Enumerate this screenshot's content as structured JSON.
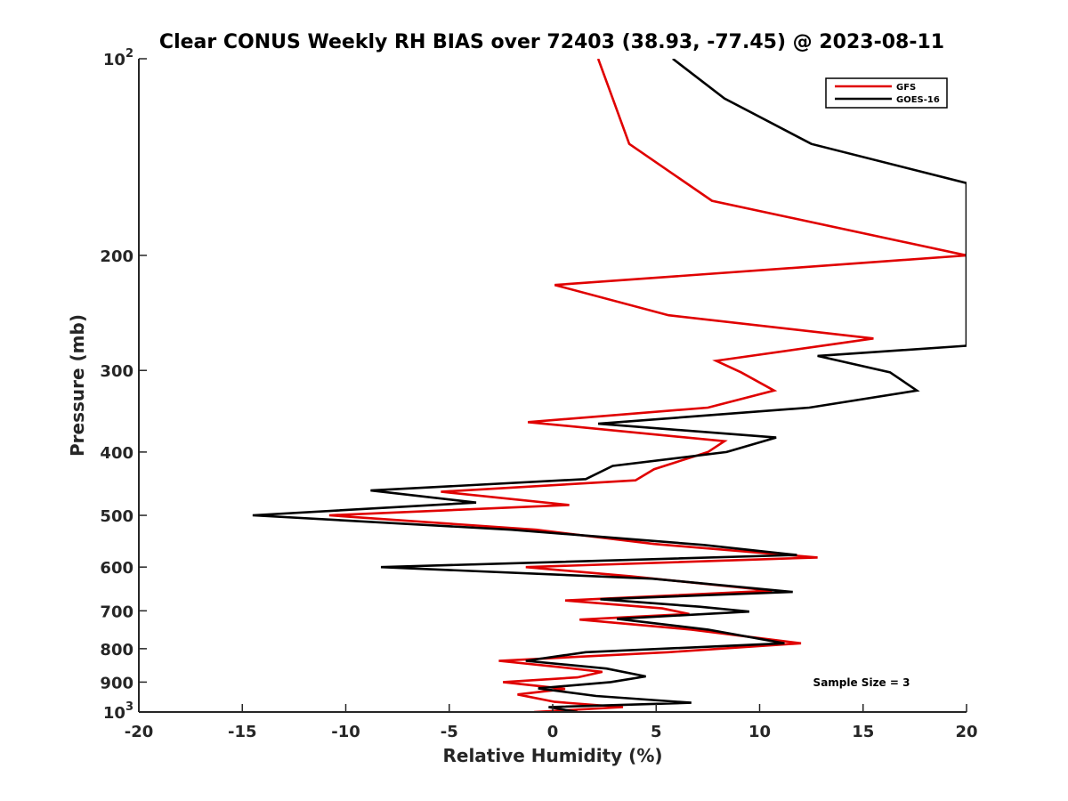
{
  "chart_data": {
    "type": "line",
    "title": "Clear CONUS Weekly RH BIAS over 72403 (38.93, -77.45) @ 2023-08-11",
    "xlabel": "Relative Humidity (%)",
    "ylabel": "Pressure (mb)",
    "xlim": [
      -20,
      20
    ],
    "ylim": [
      100,
      1000
    ],
    "y_scale": "log",
    "y_reversed": true,
    "grid": false,
    "legend_position": "top-right",
    "x_ticks": [
      "-20",
      "-15",
      "-10",
      "-5",
      "0",
      "5",
      "10",
      "15",
      "20"
    ],
    "x_tick_values": [
      -20,
      -15,
      -10,
      -5,
      0,
      5,
      10,
      15,
      20
    ],
    "y_ticks": [
      {
        "value": 100,
        "base": "10",
        "exp": "2"
      },
      {
        "value": 200,
        "label": "200"
      },
      {
        "value": 300,
        "label": "300"
      },
      {
        "value": 400,
        "label": "400"
      },
      {
        "value": 500,
        "label": "500"
      },
      {
        "value": 600,
        "label": "600"
      },
      {
        "value": 700,
        "label": "700"
      },
      {
        "value": 800,
        "label": "800"
      },
      {
        "value": 900,
        "label": "900"
      },
      {
        "value": 1000,
        "base": "10",
        "exp": "3"
      }
    ],
    "annotation": "Sample Size = 3",
    "series": [
      {
        "name": "GFS",
        "color": "#e00000",
        "points": [
          [
            2.2,
            100
          ],
          [
            2.9,
            115
          ],
          [
            3.7,
            135
          ],
          [
            7.7,
            165
          ],
          [
            20,
            200
          ],
          [
            0.1,
            222
          ],
          [
            5.6,
            247
          ],
          [
            15.5,
            268
          ],
          [
            7.9,
            290
          ],
          [
            9.1,
            302
          ],
          [
            10.7,
            322
          ],
          [
            7.5,
            342
          ],
          [
            -1.2,
            360
          ],
          [
            8.3,
            385
          ],
          [
            7.5,
            400
          ],
          [
            4.9,
            425
          ],
          [
            4.0,
            442
          ],
          [
            -5.4,
            460
          ],
          [
            0.8,
            482
          ],
          [
            -10.8,
            500
          ],
          [
            -0.8,
            526
          ],
          [
            4.9,
            553
          ],
          [
            12.8,
            580
          ],
          [
            -1.3,
            600
          ],
          [
            3.8,
            620
          ],
          [
            10.6,
            652
          ],
          [
            0.6,
            675
          ],
          [
            5.3,
            694
          ],
          [
            6.6,
            708
          ],
          [
            1.3,
            722
          ],
          [
            6.7,
            748
          ],
          [
            12.0,
            785
          ],
          [
            5.6,
            810
          ],
          [
            -2.6,
            835
          ],
          [
            0.1,
            852
          ],
          [
            2.4,
            868
          ],
          [
            1.2,
            885
          ],
          [
            -2.4,
            900
          ],
          [
            0.6,
            922
          ],
          [
            -1.7,
            940
          ],
          [
            0.1,
            965
          ],
          [
            3.4,
            983
          ],
          [
            -0.9,
            1000
          ]
        ]
      },
      {
        "name": "GOES-16",
        "color": "#000000",
        "points": [
          [
            5.8,
            100
          ],
          [
            8.3,
            115
          ],
          [
            12.5,
            135
          ],
          [
            20,
            155
          ],
          [
            20,
            275
          ],
          [
            12.8,
            285
          ],
          [
            16.3,
            302
          ],
          [
            17.6,
            322
          ],
          [
            12.4,
            342
          ],
          [
            2.2,
            362
          ],
          [
            10.8,
            380
          ],
          [
            8.4,
            400
          ],
          [
            2.9,
            420
          ],
          [
            1.6,
            440
          ],
          [
            -8.8,
            458
          ],
          [
            -3.7,
            478
          ],
          [
            -14.5,
            500
          ],
          [
            -2.0,
            526
          ],
          [
            7.3,
            555
          ],
          [
            11.8,
            575
          ],
          [
            -8.3,
            600
          ],
          [
            4.8,
            625
          ],
          [
            11.6,
            655
          ],
          [
            2.3,
            672
          ],
          [
            7.1,
            690
          ],
          [
            9.5,
            702
          ],
          [
            3.1,
            720
          ],
          [
            7.5,
            748
          ],
          [
            11.2,
            785
          ],
          [
            1.6,
            810
          ],
          [
            -1.3,
            835
          ],
          [
            2.6,
            858
          ],
          [
            4.5,
            882
          ],
          [
            2.8,
            900
          ],
          [
            -0.7,
            920
          ],
          [
            2.1,
            945
          ],
          [
            6.7,
            968
          ],
          [
            -0.2,
            983
          ],
          [
            1.2,
            1000
          ]
        ]
      }
    ]
  }
}
